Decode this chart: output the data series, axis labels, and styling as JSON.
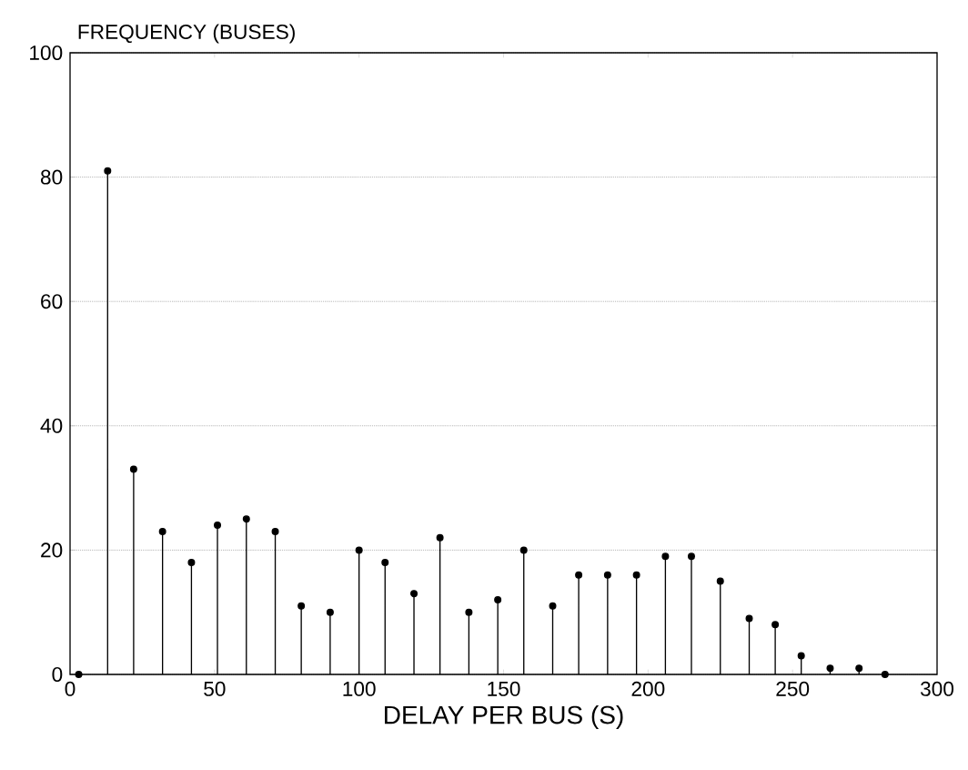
{
  "chart_data": {
    "type": "lollipop",
    "xlabel": "DELAY PER BUS (S)",
    "ylabel": "FREQUENCY (BUSES)",
    "x": [
      3,
      13,
      22,
      32,
      42,
      51,
      61,
      71,
      80,
      90,
      100,
      109,
      119,
      128,
      138,
      148,
      157,
      167,
      176,
      186,
      196,
      206,
      215,
      225,
      235,
      244,
      253,
      263,
      273,
      282
    ],
    "values": [
      0,
      81,
      33,
      23,
      18,
      24,
      25,
      23,
      11,
      10,
      20,
      18,
      13,
      22,
      10,
      12,
      20,
      11,
      16,
      16,
      16,
      19,
      19,
      15,
      9,
      8,
      3,
      1,
      1,
      0
    ],
    "color": "#000000",
    "marker": "circle",
    "xlim": [
      0,
      300
    ],
    "xticks": [
      0,
      50,
      100,
      150,
      200,
      250,
      300
    ],
    "ylim": [
      0,
      100
    ],
    "yticks": [
      0,
      20,
      40,
      60,
      80,
      100
    ],
    "grid": "y"
  }
}
